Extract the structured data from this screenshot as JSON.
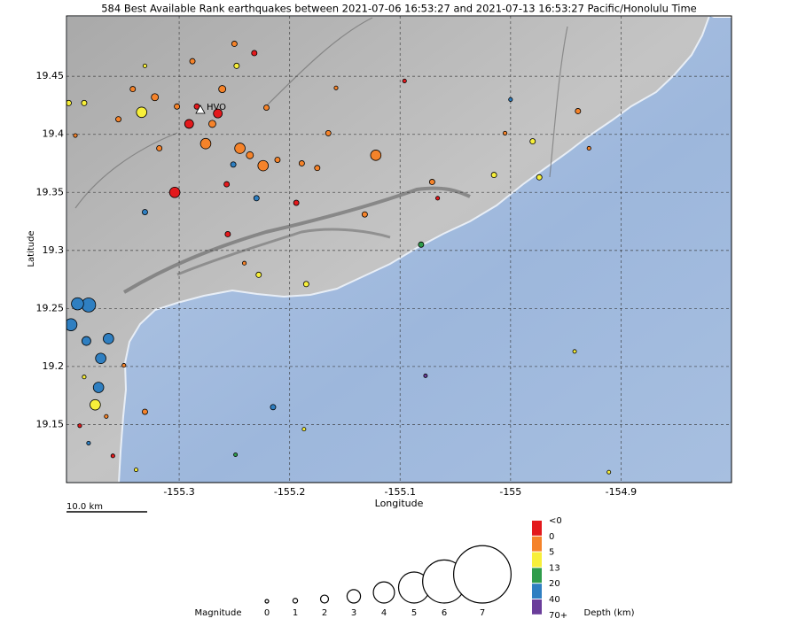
{
  "title": "584 Best Available Rank earthquakes between 2021-07-06 16:53:27 and 2021-07-13 16:53:27 Pacific/Honolulu Time",
  "station_label": "HVO",
  "scale_bar": "10.0 km",
  "map": {
    "xlabel": "Longitude",
    "ylabel": "Latitude",
    "xlim": [
      -155.402,
      -154.8
    ],
    "ylim": [
      19.1,
      19.502
    ],
    "xticks": [
      -155.3,
      -155.2,
      -155.1,
      -155,
      -154.9
    ],
    "yticks": [
      19.15,
      19.2,
      19.25,
      19.3,
      19.35,
      19.4,
      19.45
    ],
    "grid": true
  },
  "magnitude_legend": {
    "label": "Magnitude",
    "values": [
      0,
      1,
      2,
      3,
      4,
      5,
      6,
      7
    ]
  },
  "depth_legend": {
    "label": "Depth (km)",
    "ticks": [
      "<0",
      0,
      5,
      13,
      20,
      40,
      "70+"
    ],
    "colors": [
      "#e3191c",
      "#f5832a",
      "#f7ef3a",
      "#2f9c4b",
      "#2f7fc1",
      "#6a3d9a"
    ]
  },
  "earthquakes": [
    {
      "lon": -155.304,
      "lat": 19.35,
      "mag": 2.5,
      "depth": -0.4
    },
    {
      "lon": -155.122,
      "lat": 19.382,
      "mag": 2.5,
      "depth": 2
    },
    {
      "lon": -155.224,
      "lat": 19.373,
      "mag": 2.5,
      "depth": 3
    },
    {
      "lon": -155.245,
      "lat": 19.388,
      "mag": 2.5,
      "depth": 2
    },
    {
      "lon": -155.276,
      "lat": 19.392,
      "mag": 2.5,
      "depth": 1
    },
    {
      "lon": -155.265,
      "lat": 19.418,
      "mag": 2.2,
      "depth": -0.2
    },
    {
      "lon": -155.291,
      "lat": 19.409,
      "mag": 2.2,
      "depth": -0.1
    },
    {
      "lon": -155.334,
      "lat": 19.419,
      "mag": 2.5,
      "depth": 6
    },
    {
      "lon": -155.382,
      "lat": 19.253,
      "mag": 3.1,
      "depth": 28
    },
    {
      "lon": -155.392,
      "lat": 19.254,
      "mag": 2.8,
      "depth": 30
    },
    {
      "lon": -155.398,
      "lat": 19.236,
      "mag": 2.8,
      "depth": 32
    },
    {
      "lon": -155.364,
      "lat": 19.224,
      "mag": 2.5,
      "depth": 25
    },
    {
      "lon": -155.371,
      "lat": 19.207,
      "mag": 2.5,
      "depth": 27
    },
    {
      "lon": -155.373,
      "lat": 19.182,
      "mag": 2.5,
      "depth": 26
    },
    {
      "lon": -155.376,
      "lat": 19.167,
      "mag": 2.5,
      "depth": 8
    },
    {
      "lon": -155.384,
      "lat": 19.222,
      "mag": 2.2,
      "depth": 24
    },
    {
      "lon": -155.215,
      "lat": 19.165,
      "mag": 1.3,
      "depth": 22
    },
    {
      "lon": -155.331,
      "lat": 19.333,
      "mag": 1.3,
      "depth": 21
    },
    {
      "lon": -155.081,
      "lat": 19.305,
      "mag": 1.3,
      "depth": 15
    },
    {
      "lon": -155.23,
      "lat": 19.345,
      "mag": 1.3,
      "depth": 23
    },
    {
      "lon": -155.251,
      "lat": 19.374,
      "mag": 1.3,
      "depth": 21
    },
    {
      "lon": -155.232,
      "lat": 19.47,
      "mag": 1.3,
      "depth": -0.2
    },
    {
      "lon": -155.25,
      "lat": 19.478,
      "mag": 1.3,
      "depth": 2
    },
    {
      "lon": -155.248,
      "lat": 19.459,
      "mag": 1.3,
      "depth": 7
    },
    {
      "lon": -155.288,
      "lat": 19.463,
      "mag": 1.3,
      "depth": 3
    },
    {
      "lon": -154.939,
      "lat": 19.42,
      "mag": 1.3,
      "depth": 3
    },
    {
      "lon": -154.98,
      "lat": 19.394,
      "mag": 1.3,
      "depth": 7
    },
    {
      "lon": -154.974,
      "lat": 19.363,
      "mag": 1.3,
      "depth": 8
    },
    {
      "lon": -155.015,
      "lat": 19.365,
      "mag": 1.3,
      "depth": 9
    },
    {
      "lon": -154.929,
      "lat": 19.388,
      "mag": 0.5,
      "depth": 2
    },
    {
      "lon": -155.185,
      "lat": 19.271,
      "mag": 1.3,
      "depth": 7
    },
    {
      "lon": -155.228,
      "lat": 19.279,
      "mag": 1.3,
      "depth": 6
    },
    {
      "lon": -155.241,
      "lat": 19.289,
      "mag": 0.5,
      "depth": 3
    },
    {
      "lon": -155.194,
      "lat": 19.341,
      "mag": 1.3,
      "depth": -0.3
    },
    {
      "lon": -155.158,
      "lat": 19.44,
      "mag": 0.5,
      "depth": 2
    },
    {
      "lon": -155.096,
      "lat": 19.446,
      "mag": 0.5,
      "depth": -0.1
    },
    {
      "lon": -155.071,
      "lat": 19.359,
      "mag": 1.3,
      "depth": 3
    },
    {
      "lon": -155.066,
      "lat": 19.345,
      "mag": 0.5,
      "depth": -0.2
    },
    {
      "lon": -155.132,
      "lat": 19.331,
      "mag": 1.3,
      "depth": 2
    },
    {
      "lon": -155.165,
      "lat": 19.401,
      "mag": 1.3,
      "depth": 3
    },
    {
      "lon": -155.175,
      "lat": 19.371,
      "mag": 1.3,
      "depth": 2
    },
    {
      "lon": -155.257,
      "lat": 19.357,
      "mag": 1.3,
      "depth": -0.3
    },
    {
      "lon": -155.256,
      "lat": 19.314,
      "mag": 1.3,
      "depth": -0.1
    },
    {
      "lon": -155.331,
      "lat": 19.161,
      "mag": 1.3,
      "depth": 4
    },
    {
      "lon": -155.35,
      "lat": 19.201,
      "mag": 0.5,
      "depth": 3
    },
    {
      "lon": -155.4,
      "lat": 19.427,
      "mag": 1.3,
      "depth": 9
    },
    {
      "lon": -155.386,
      "lat": 19.427,
      "mag": 1.3,
      "depth": 7
    },
    {
      "lon": -155.331,
      "lat": 19.459,
      "mag": 0.5,
      "depth": 6
    },
    {
      "lon": -155.355,
      "lat": 19.413,
      "mag": 1.3,
      "depth": 2
    },
    {
      "lon": -155.394,
      "lat": 19.399,
      "mag": 0.5,
      "depth": 3
    },
    {
      "lon": -155.318,
      "lat": 19.388,
      "mag": 1.3,
      "depth": 2
    },
    {
      "lon": -154.942,
      "lat": 19.213,
      "mag": 0.3,
      "depth": 8
    },
    {
      "lon": -155.077,
      "lat": 19.192,
      "mag": 0.3,
      "depth": 45
    },
    {
      "lon": -154.911,
      "lat": 19.109,
      "mag": 0.3,
      "depth": 7
    },
    {
      "lon": -155.187,
      "lat": 19.146,
      "mag": 0.3,
      "depth": 9
    },
    {
      "lon": -155.249,
      "lat": 19.124,
      "mag": 0.3,
      "depth": 16
    },
    {
      "lon": -155.386,
      "lat": 19.191,
      "mag": 0.5,
      "depth": 8
    },
    {
      "lon": -155.39,
      "lat": 19.149,
      "mag": 0.5,
      "depth": -0.2
    },
    {
      "lon": -155.382,
      "lat": 19.134,
      "mag": 0.5,
      "depth": 24
    },
    {
      "lon": -155.366,
      "lat": 19.157,
      "mag": 0.5,
      "depth": 3
    },
    {
      "lon": -155.36,
      "lat": 19.123,
      "mag": 0.5,
      "depth": -0.1
    },
    {
      "lon": -155.339,
      "lat": 19.111,
      "mag": 0.3,
      "depth": 7
    },
    {
      "lon": -155.27,
      "lat": 19.409,
      "mag": 1.8,
      "depth": 1
    },
    {
      "lon": -155.284,
      "lat": 19.424,
      "mag": 1.3,
      "depth": -0.2
    },
    {
      "lon": -155.302,
      "lat": 19.424,
      "mag": 1.3,
      "depth": 2
    },
    {
      "lon": -155.261,
      "lat": 19.439,
      "mag": 1.8,
      "depth": 2
    },
    {
      "lon": -155.236,
      "lat": 19.382,
      "mag": 1.8,
      "depth": 3
    },
    {
      "lon": -155.211,
      "lat": 19.378,
      "mag": 1.3,
      "depth": 2
    },
    {
      "lon": -155.189,
      "lat": 19.375,
      "mag": 1.3,
      "depth": 3
    },
    {
      "lon": -155.221,
      "lat": 19.423,
      "mag": 1.3,
      "depth": 2
    },
    {
      "lon": -155.342,
      "lat": 19.439,
      "mag": 1.3,
      "depth": 3
    },
    {
      "lon": -155.322,
      "lat": 19.432,
      "mag": 1.8,
      "depth": 2
    },
    {
      "lon": -155.005,
      "lat": 19.401,
      "mag": 0.5,
      "depth": 3
    },
    {
      "lon": -155.0,
      "lat": 19.43,
      "mag": 0.5,
      "depth": 22
    }
  ]
}
